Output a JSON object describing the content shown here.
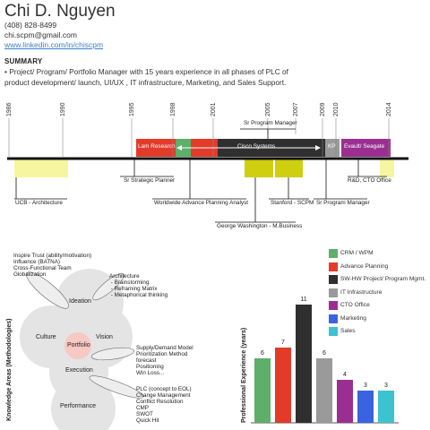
{
  "header": {
    "name": "Chi D. Nguyen",
    "phone": "(408) 828-8499",
    "email": "chi.scpm@gmail.com",
    "linkedin": "www.linkedin.com/in/chiscpm"
  },
  "summary": {
    "heading": "SUMMARY",
    "text": "• Project/ Program/ Portfolio Manager with 15 years experience in all phases of PLC of product development/ launch, UI/UX , IT infrastructure, Marketing, and Sales Support."
  },
  "timeline": {
    "years": [
      "1986",
      "1990",
      "1995",
      "1998",
      "2001",
      "2005",
      "2007",
      "2009",
      "2010",
      "2014"
    ],
    "bars": [
      {
        "label": "Lam Research",
        "color": "#e23b2a"
      },
      {
        "label": "Cisco Systems",
        "color": "#2f2f2f"
      },
      {
        "label": "KP",
        "color": "#9a9a9a"
      },
      {
        "label": "Evault/ Seagate",
        "color": "#9a2f91"
      }
    ],
    "labels": {
      "sr_program_manager_top": "Sr Program Manager",
      "sr_strategic_planner": "Sr Strategic Planner",
      "worldwide_planning": "Worldwide Advance Planning Analyst",
      "george_washington": "George Washington - M.Business",
      "stanford": "Stanford - SCPM",
      "sr_program_manager_bottom": "Sr Program Manager",
      "rd_cto": "R&D, CTO Office",
      "ucb": "UCB - Architecture"
    }
  },
  "methodology": {
    "axis_label": "Knowledge Areas (Methodologies)",
    "circles": [
      "Ideation",
      "Culture",
      "Vision",
      "Portfolio",
      "Execution",
      "Performance"
    ],
    "notes": {
      "culture": "Inspire Trust (ability/motivation)\nInfluence (BATNA)\nCross-Functional Team\nGlobalization",
      "ideation": "Architecture\n - Brainstorming\n - Reframing Matrix\n - Metaphorical thinking",
      "portfolio": "Supply/Demand Model\nPrioritization Method\nforecast\nPositioning\nWin Loss...",
      "execution": "PLC (concept to EOL)\nChange Management\nConflict Resolution\nCMP\nSWOT\nQuick Hit"
    }
  },
  "experience_chart": {
    "ylabel": "Professional Experience (years)",
    "legend_swatch_colors": [
      "#5daf6a",
      "#e23b2a",
      "#2f2f2f",
      "#9a9a9a",
      "#9a2f91",
      "#3b63e0",
      "#3cc3cf"
    ]
  },
  "chart_data": {
    "type": "bar",
    "title": "",
    "xlabel": "",
    "ylabel": "Professional Experience (years)",
    "categories": [
      "CRM / WPM",
      "Advance Planning",
      "SW-HW Project/ Program Mgmt.",
      "IT Infrastructure",
      "CTO Office",
      "Marketing",
      "Sales"
    ],
    "values": [
      6,
      7,
      11,
      6,
      4,
      3,
      3
    ],
    "colors": [
      "#5daf6a",
      "#e23b2a",
      "#2f2f2f",
      "#9a9a9a",
      "#9a2f91",
      "#3b63e0",
      "#3cc3cf"
    ],
    "ylim": [
      0,
      11
    ],
    "grid": false,
    "legend": "top-right"
  }
}
